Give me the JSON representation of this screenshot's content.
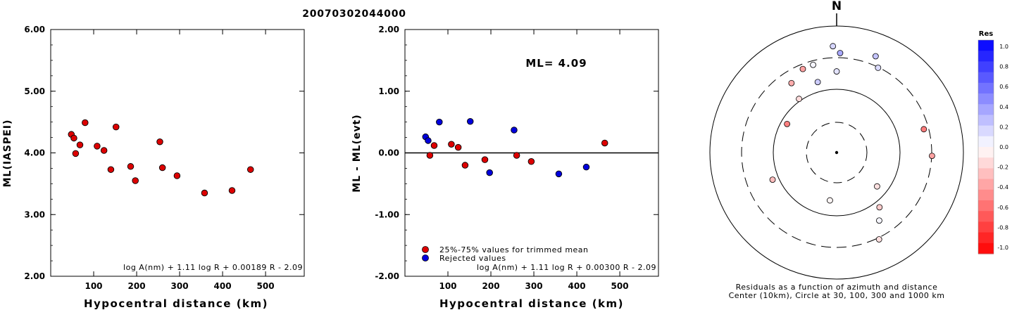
{
  "title": "20070302044000",
  "colors": {
    "red_marker": "#dd0000",
    "blue_marker": "#0000dd",
    "axis": "#000000"
  },
  "chart_data": [
    {
      "type": "scatter",
      "xlabel": "Hypocentral distance (km)",
      "ylabel": "ML(IASPEI)",
      "xlim": [
        0,
        590
      ],
      "ylim": [
        2.0,
        6.0
      ],
      "xticks": [
        "100",
        "200",
        "300",
        "400",
        "500"
      ],
      "yticks": [
        "2.00",
        "3.00",
        "4.00",
        "5.00",
        "6.00"
      ],
      "formula": "log A(nm) + 1.11 log R + 0.00189 R - 2.09",
      "series": [
        {
          "color": "#dd0000",
          "points": [
            [
              48,
              4.3
            ],
            [
              54,
              4.24
            ],
            [
              58,
              3.99
            ],
            [
              68,
              4.13
            ],
            [
              80,
              4.49
            ],
            [
              108,
              4.11
            ],
            [
              124,
              4.04
            ],
            [
              140,
              3.73
            ],
            [
              152,
              4.42
            ],
            [
              186,
              3.78
            ],
            [
              197,
              3.55
            ],
            [
              254,
              4.18
            ],
            [
              260,
              3.76
            ],
            [
              294,
              3.63
            ],
            [
              358,
              3.35
            ],
            [
              422,
              3.39
            ],
            [
              465,
              3.73
            ]
          ]
        }
      ]
    },
    {
      "type": "scatter",
      "xlabel": "Hypocentral distance (km)",
      "ylabel": "ML - ML(evt)",
      "xlim": [
        0,
        590
      ],
      "ylim": [
        -2.0,
        2.0
      ],
      "xticks": [
        "100",
        "200",
        "300",
        "400",
        "500"
      ],
      "yticks": [
        "-2.00",
        "-1.00",
        "0.00",
        "1.00",
        "2.00"
      ],
      "annotation": "ML= 4.09",
      "formula": "log A(nm) + 1.11 log R + 0.00300 R - 2.09",
      "legend": [
        {
          "label": "25%-75% values for trimmed mean",
          "color": "#dd0000"
        },
        {
          "label": "Rejected values",
          "color": "#0000dd"
        }
      ],
      "series": [
        {
          "color": "#dd0000",
          "points": [
            [
              58,
              -0.04
            ],
            [
              68,
              0.12
            ],
            [
              108,
              0.14
            ],
            [
              124,
              0.09
            ],
            [
              140,
              -0.2
            ],
            [
              186,
              -0.11
            ],
            [
              260,
              -0.04
            ],
            [
              294,
              -0.14
            ],
            [
              465,
              0.16
            ]
          ]
        },
        {
          "color": "#0000dd",
          "points": [
            [
              48,
              0.26
            ],
            [
              54,
              0.2
            ],
            [
              80,
              0.5
            ],
            [
              152,
              0.51
            ],
            [
              197,
              -0.32
            ],
            [
              254,
              0.37
            ],
            [
              358,
              -0.34
            ],
            [
              422,
              -0.23
            ]
          ]
        }
      ]
    },
    {
      "type": "polar-scatter",
      "north_label": "N",
      "caption_line1": "Residuals as a function of azimuth and distance",
      "caption_line2": "Center (10km), Circle at 30, 100, 300 and 1000 km",
      "colorbar_title": "Res",
      "colorbar_ticks": [
        "1.0",
        "0.8",
        "0.6",
        "0.4",
        "0.2",
        "0.0",
        "-0.2",
        "-0.4",
        "-0.6",
        "-0.8",
        "-1.0"
      ],
      "points": [
        {
          "azimuth": 358,
          "distance": 465,
          "residual": 0.16
        },
        {
          "azimuth": 22,
          "distance": 422,
          "residual": 0.23
        },
        {
          "azimuth": 2,
          "distance": 358,
          "residual": 0.34
        },
        {
          "azimuth": 26,
          "distance": 294,
          "residual": 0.14
        },
        {
          "azimuth": 345,
          "distance": 260,
          "residual": 0.04
        },
        {
          "azimuth": 338,
          "distance": 254,
          "residual": -0.37
        },
        {
          "azimuth": 0,
          "distance": 186,
          "residual": 0.11
        },
        {
          "azimuth": 327,
          "distance": 197,
          "residual": -0.32
        },
        {
          "azimuth": 345,
          "distance": 140,
          "residual": 0.2
        },
        {
          "azimuth": 325,
          "distance": 108,
          "residual": -0.14
        },
        {
          "azimuth": 300,
          "distance": 80,
          "residual": -0.5
        },
        {
          "azimuth": 75,
          "distance": 254,
          "residual": -0.51
        },
        {
          "azimuth": 92,
          "distance": 304,
          "residual": -0.37
        },
        {
          "azimuth": 247,
          "distance": 124,
          "residual": -0.26
        },
        {
          "azimuth": 130,
          "distance": 68,
          "residual": -0.12
        },
        {
          "azimuth": 188,
          "distance": 58,
          "residual": -0.04
        },
        {
          "azimuth": 142,
          "distance": 124,
          "residual": -0.2
        },
        {
          "azimuth": 154,
          "distance": 320,
          "residual": -0.12
        },
        {
          "azimuth": 148,
          "distance": 180,
          "residual": 0.04
        }
      ]
    }
  ]
}
